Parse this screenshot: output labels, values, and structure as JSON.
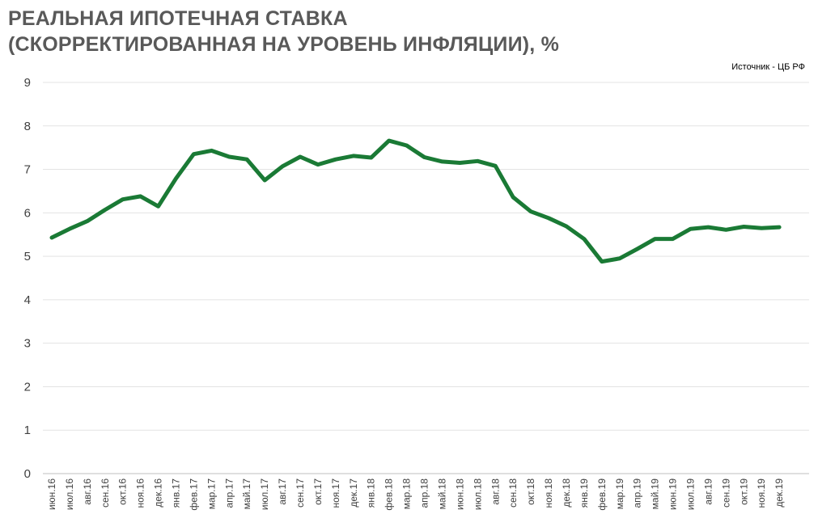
{
  "header": {
    "title_line1": "РЕАЛЬНАЯ ИПОТЕЧНАЯ СТАВКА",
    "title_line2": "(СКОРРЕКТИРОВАННАЯ НА УРОВЕНЬ  ИНФЛЯЦИИ), %",
    "source": "Источник  - ЦБ РФ"
  },
  "chart_data": {
    "type": "line",
    "title": "РЕАЛЬНАЯ ИПОТЕЧНАЯ СТАВКА (СКОРРЕКТИРОВАННАЯ НА УРОВЕНЬ  ИНФЛЯЦИИ), %",
    "categories": [
      "июн.16",
      "июл.16",
      "авг.16",
      "сен.16",
      "окт.16",
      "ноя.16",
      "дек.16",
      "янв.17",
      "фев.17",
      "мар.17",
      "апр.17",
      "май.17",
      "июл.17",
      "авг.17",
      "сен.17",
      "окт.17",
      "ноя.17",
      "дек.17",
      "янв.18",
      "фев.18",
      "мар.18",
      "апр.18",
      "май.18",
      "июн.18",
      "июл.18",
      "авг.18",
      "сен.18",
      "окт.18",
      "ноя.18",
      "дек.18",
      "янв.19",
      "фев.19",
      "мар.19",
      "апр.19",
      "май.19",
      "июн.19",
      "июл.19",
      "авг.19",
      "сен.19",
      "окт.19",
      "ноя.19",
      "дек.19"
    ],
    "series": [
      {
        "name": "",
        "color": "#1a7a35",
        "values": [
          5.43,
          5.63,
          5.81,
          6.07,
          6.31,
          6.38,
          6.15,
          6.79,
          7.35,
          7.43,
          7.29,
          7.23,
          6.75,
          7.07,
          7.29,
          7.11,
          7.23,
          7.31,
          7.27,
          7.66,
          7.55,
          7.28,
          7.18,
          7.15,
          7.19,
          7.08,
          6.36,
          6.03,
          5.88,
          5.69,
          5.4,
          4.88,
          4.95,
          5.17,
          5.4,
          5.4,
          5.63,
          5.67,
          5.61,
          5.68,
          5.65,
          5.67
        ]
      }
    ],
    "xlabel": "",
    "ylabel": "",
    "ylim": [
      0,
      9
    ],
    "yticks": [
      0,
      1,
      2,
      3,
      4,
      5,
      6,
      7,
      8,
      9
    ],
    "grid": true
  }
}
